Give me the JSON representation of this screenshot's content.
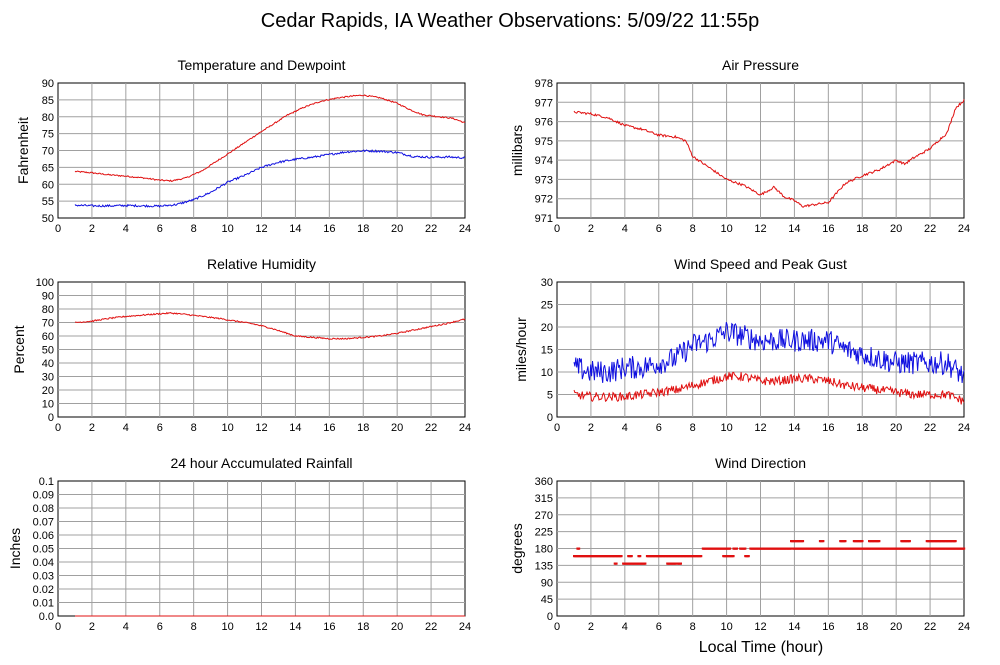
{
  "page": {
    "title": "Cedar Rapids, IA Weather Observations: 5/09/22 11:55p",
    "xlabel": "Local Time (hour)"
  },
  "colors": {
    "red": "#e01010",
    "blue": "#1010e0",
    "grid": "#a0a0a0"
  },
  "x_ticks": [
    0,
    2,
    4,
    6,
    8,
    10,
    12,
    14,
    16,
    18,
    20,
    22,
    24
  ],
  "chart_data": [
    {
      "id": "temp",
      "type": "line",
      "title": "Temperature and Dewpoint",
      "ylabel": "Fahrenheit",
      "xlim": [
        0,
        24
      ],
      "ylim": [
        50,
        90
      ],
      "yticks": [
        50,
        55,
        60,
        65,
        70,
        75,
        80,
        85,
        90
      ],
      "series": [
        {
          "color": "red",
          "noise": 0.2,
          "points": [
            [
              1,
              63.8
            ],
            [
              2,
              63.4
            ],
            [
              3,
              62.8
            ],
            [
              4,
              62.4
            ],
            [
              5,
              61.9
            ],
            [
              6,
              61.2
            ],
            [
              6.7,
              61.0
            ],
            [
              7.5,
              61.8
            ],
            [
              8.5,
              64.0
            ],
            [
              9.5,
              67.3
            ],
            [
              10.5,
              70.6
            ],
            [
              11.5,
              74.0
            ],
            [
              12.5,
              77.2
            ],
            [
              13.5,
              80.4
            ],
            [
              14.5,
              82.8
            ],
            [
              15.5,
              84.6
            ],
            [
              16.5,
              85.6
            ],
            [
              17.5,
              86.2
            ],
            [
              18,
              86.4
            ],
            [
              19,
              85.6
            ],
            [
              20,
              84.0
            ],
            [
              20.8,
              82.0
            ],
            [
              21.5,
              80.6
            ],
            [
              22.5,
              80.0
            ],
            [
              23.3,
              79.5
            ],
            [
              24,
              78.2
            ]
          ]
        },
        {
          "color": "blue",
          "noise": 0.3,
          "points": [
            [
              1,
              53.8
            ],
            [
              2,
              53.6
            ],
            [
              3,
              53.6
            ],
            [
              4,
              53.7
            ],
            [
              5,
              53.6
            ],
            [
              6,
              53.5
            ],
            [
              7,
              54.0
            ],
            [
              8,
              55.4
            ],
            [
              9,
              57.6
            ],
            [
              10,
              60.6
            ],
            [
              11,
              62.6
            ],
            [
              12,
              65.0
            ],
            [
              13,
              66.5
            ],
            [
              14,
              67.4
            ],
            [
              15,
              68.0
            ],
            [
              16,
              68.8
            ],
            [
              17,
              69.6
            ],
            [
              18,
              69.9
            ],
            [
              19,
              69.8
            ],
            [
              20,
              69.4
            ],
            [
              21,
              68.2
            ],
            [
              22,
              68.0
            ],
            [
              23,
              68.1
            ],
            [
              24,
              67.8
            ]
          ]
        }
      ]
    },
    {
      "id": "pressure",
      "type": "line",
      "title": "Air Pressure",
      "ylabel": "millibars",
      "xlim": [
        0,
        24
      ],
      "ylim": [
        971,
        978
      ],
      "yticks": [
        971,
        972,
        973,
        974,
        975,
        976,
        977,
        978
      ],
      "series": [
        {
          "color": "red",
          "noise": 0.06,
          "points": [
            [
              1,
              976.5
            ],
            [
              2,
              976.4
            ],
            [
              3,
              976.2
            ],
            [
              4,
              975.8
            ],
            [
              5,
              975.6
            ],
            [
              6,
              975.3
            ],
            [
              7,
              975.2
            ],
            [
              7.6,
              975.0
            ],
            [
              8,
              974.2
            ],
            [
              9,
              973.6
            ],
            [
              10,
              973.0
            ],
            [
              11,
              972.7
            ],
            [
              12,
              972.2
            ],
            [
              12.8,
              972.6
            ],
            [
              13.4,
              972.1
            ],
            [
              14,
              971.9
            ],
            [
              14.5,
              971.6
            ],
            [
              15.2,
              971.7
            ],
            [
              16,
              971.8
            ],
            [
              17,
              972.8
            ],
            [
              18,
              973.2
            ],
            [
              19,
              973.5
            ],
            [
              20,
              974.0
            ],
            [
              20.5,
              973.8
            ],
            [
              21,
              974.1
            ],
            [
              22,
              974.6
            ],
            [
              22.6,
              975.1
            ],
            [
              23,
              975.4
            ],
            [
              23.5,
              976.7
            ],
            [
              24,
              977.1
            ]
          ]
        }
      ]
    },
    {
      "id": "humidity",
      "type": "line",
      "title": "Relative Humidity",
      "ylabel": "Percent",
      "xlim": [
        0,
        24
      ],
      "ylim": [
        0,
        100
      ],
      "yticks": [
        0,
        10,
        20,
        30,
        40,
        50,
        60,
        70,
        80,
        90,
        100
      ],
      "series": [
        {
          "color": "red",
          "noise": 0.5,
          "points": [
            [
              1,
              70
            ],
            [
              2,
              71
            ],
            [
              3,
              73
            ],
            [
              4,
              74.5
            ],
            [
              5,
              75.5
            ],
            [
              6,
              76.5
            ],
            [
              6.7,
              77
            ],
            [
              7.5,
              76
            ],
            [
              8.5,
              74.5
            ],
            [
              9.5,
              73
            ],
            [
              10.5,
              71
            ],
            [
              11.5,
              69
            ],
            [
              12.5,
              66
            ],
            [
              13.5,
              62
            ],
            [
              14,
              60
            ],
            [
              15,
              59
            ],
            [
              16,
              58
            ],
            [
              17,
              58
            ],
            [
              18,
              59
            ],
            [
              19,
              60
            ],
            [
              20,
              62
            ],
            [
              21,
              64.5
            ],
            [
              22,
              67
            ],
            [
              23,
              69.5
            ],
            [
              24,
              72.5
            ]
          ]
        }
      ]
    },
    {
      "id": "wind",
      "type": "line",
      "title": "Wind Speed and Peak Gust",
      "ylabel": "miles/hour",
      "xlim": [
        0,
        24
      ],
      "ylim": [
        0,
        30
      ],
      "yticks": [
        0,
        5,
        10,
        15,
        20,
        25,
        30
      ],
      "series": [
        {
          "color": "blue",
          "noise": 2.6,
          "points": [
            [
              1,
              11
            ],
            [
              2,
              10
            ],
            [
              3,
              10
            ],
            [
              4,
              11
            ],
            [
              5,
              11
            ],
            [
              6,
              12
            ],
            [
              7,
              13
            ],
            [
              8,
              16
            ],
            [
              9,
              17
            ],
            [
              10,
              19
            ],
            [
              11,
              18
            ],
            [
              12,
              17
            ],
            [
              13,
              17
            ],
            [
              14,
              17
            ],
            [
              15,
              17
            ],
            [
              16,
              17
            ],
            [
              17,
              15
            ],
            [
              18,
              14
            ],
            [
              19,
              13
            ],
            [
              20,
              12
            ],
            [
              21,
              12
            ],
            [
              22,
              12
            ],
            [
              23,
              12
            ],
            [
              24,
              9
            ]
          ]
        },
        {
          "color": "red",
          "noise": 1.0,
          "points": [
            [
              1,
              5
            ],
            [
              2,
              4.5
            ],
            [
              3,
              4.5
            ],
            [
              4,
              4.5
            ],
            [
              5,
              5
            ],
            [
              6,
              5.5
            ],
            [
              7,
              6
            ],
            [
              8,
              7
            ],
            [
              9,
              8
            ],
            [
              10,
              9
            ],
            [
              11,
              9
            ],
            [
              12,
              8
            ],
            [
              13,
              8
            ],
            [
              14,
              8.5
            ],
            [
              15,
              8.5
            ],
            [
              16,
              8
            ],
            [
              17,
              7
            ],
            [
              18,
              6.5
            ],
            [
              19,
              6
            ],
            [
              20,
              5.5
            ],
            [
              21,
              5
            ],
            [
              22,
              5
            ],
            [
              23,
              5
            ],
            [
              24,
              3.5
            ]
          ]
        }
      ]
    },
    {
      "id": "rain",
      "type": "line",
      "title": "24 hour Accumulated Rainfall",
      "ylabel": "Inches",
      "xlim": [
        0,
        24
      ],
      "ylim": [
        0,
        0.1
      ],
      "yticks": [
        0.0,
        0.01,
        0.02,
        0.03,
        0.04,
        0.05,
        0.06,
        0.07,
        0.08,
        0.09,
        0.1
      ],
      "ytick_labels": [
        "0.0",
        "0.01",
        "0.02",
        "0.03",
        "0.04",
        "0.05",
        "0.06",
        "0.07",
        "0.08",
        "0.09",
        "0.1"
      ],
      "series": [
        {
          "color": "red",
          "noise": 0,
          "points": [
            [
              1,
              0
            ],
            [
              24,
              0
            ]
          ]
        }
      ]
    },
    {
      "id": "direction",
      "type": "scatter",
      "title": "Wind Direction",
      "ylabel": "degrees",
      "xlim": [
        0,
        24
      ],
      "ylim": [
        0,
        360
      ],
      "yticks": [
        0,
        45,
        90,
        135,
        180,
        225,
        270,
        315,
        360
      ],
      "series": [
        {
          "color": "red",
          "segments": [
            [
              1,
              3.8,
              160
            ],
            [
              1.2,
              1.3,
              180
            ],
            [
              3.9,
              5.2,
              140
            ],
            [
              3.4,
              3.5,
              140
            ],
            [
              4.2,
              4.4,
              160
            ],
            [
              4.8,
              4.9,
              160
            ],
            [
              5.3,
              8.5,
              160
            ],
            [
              6.5,
              7.0,
              140
            ],
            [
              7.1,
              7.3,
              140
            ],
            [
              8.6,
              10.2,
              180
            ],
            [
              9.8,
              10.4,
              160
            ],
            [
              10.4,
              10.6,
              180
            ],
            [
              10.8,
              11.1,
              180
            ],
            [
              11.1,
              11.3,
              160
            ],
            [
              11.4,
              13.8,
              180
            ],
            [
              13.8,
              14.5,
              200
            ],
            [
              13.9,
              24,
              180
            ],
            [
              15.5,
              15.7,
              200
            ],
            [
              16.7,
              17.0,
              200
            ],
            [
              17.5,
              18.0,
              200
            ],
            [
              18.4,
              19.0,
              200
            ],
            [
              20.3,
              20.8,
              200
            ],
            [
              21.8,
              23.5,
              200
            ]
          ]
        }
      ]
    }
  ]
}
